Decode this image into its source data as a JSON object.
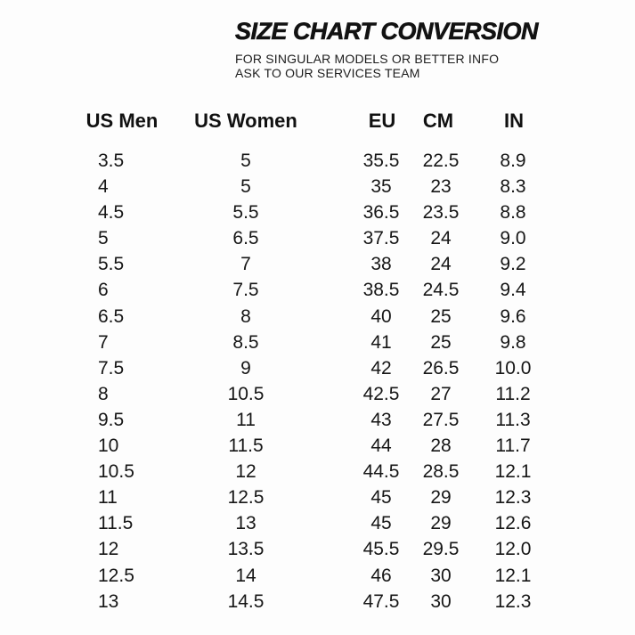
{
  "header": {
    "title": "SIZE CHART CONVERSION",
    "subtitle_line1": "FOR SINGULAR MODELS OR BETTER INFO",
    "subtitle_line2": "ASK TO OUR SERVICES TEAM"
  },
  "table": {
    "columns": [
      "US Men",
      "US Women",
      "EU",
      "CM",
      "IN"
    ],
    "rows": [
      [
        "3.5",
        "5",
        "35.5",
        "22.5",
        "8.9"
      ],
      [
        "4",
        "5",
        "35",
        "23",
        "8.3"
      ],
      [
        "4.5",
        "5.5",
        "36.5",
        "23.5",
        "8.8"
      ],
      [
        "5",
        "6.5",
        "37.5",
        "24",
        "9.0"
      ],
      [
        "5.5",
        "7",
        "38",
        "24",
        "9.2"
      ],
      [
        "6",
        "7.5",
        "38.5",
        "24.5",
        "9.4"
      ],
      [
        "6.5",
        "8",
        "40",
        "25",
        "9.6"
      ],
      [
        "7",
        "8.5",
        "41",
        "25",
        "9.8"
      ],
      [
        "7.5",
        "9",
        "42",
        "26.5",
        "10.0"
      ],
      [
        "8",
        "10.5",
        "42.5",
        "27",
        "11.2"
      ],
      [
        "9.5",
        "11",
        "43",
        "27.5",
        "11.3"
      ],
      [
        "10",
        "11.5",
        "44",
        "28",
        "11.7"
      ],
      [
        "10.5",
        "12",
        "44.5",
        "28.5",
        "12.1"
      ],
      [
        "11",
        "12.5",
        "45",
        "29",
        "12.3"
      ],
      [
        "11.5",
        "13",
        "45",
        "29",
        "12.6"
      ],
      [
        "12",
        "13.5",
        "45.5",
        "29.5",
        "12.0"
      ],
      [
        "12.5",
        "14",
        "46",
        "30",
        "12.1"
      ],
      [
        "13",
        "14.5",
        "47.5",
        "30",
        "12.3"
      ]
    ]
  },
  "colors": {
    "text": "#131313",
    "background": "#fdfdfd"
  }
}
